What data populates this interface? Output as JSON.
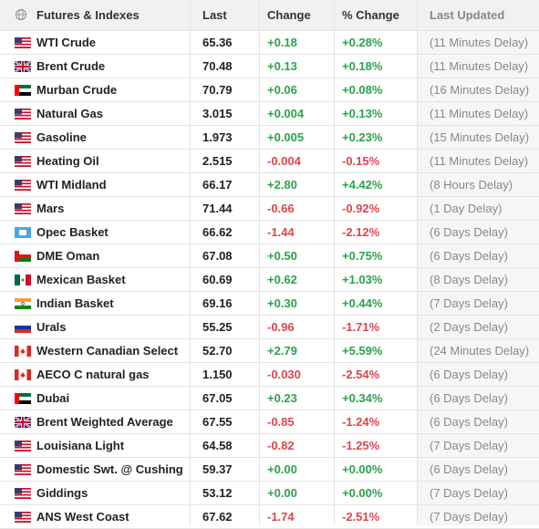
{
  "table": {
    "header": [
      "Futures & Indexes",
      "Last",
      "Change",
      "% Change",
      "Last Updated"
    ],
    "rows": [
      [
        "WTI Crude",
        "65.36",
        "+0.18",
        "+0.28%",
        "(11 Minutes Delay)"
      ],
      [
        "Brent Crude",
        "70.48",
        "+0.13",
        "+0.18%",
        "(11 Minutes Delay)"
      ],
      [
        "Murban Crude",
        "70.79",
        "+0.06",
        "+0.08%",
        "(16 Minutes Delay)"
      ],
      [
        "Natural Gas",
        "3.015",
        "+0.004",
        "+0.13%",
        "(11 Minutes Delay)"
      ],
      [
        "Gasoline",
        "1.973",
        "+0.005",
        "+0.23%",
        "(15 Minutes Delay)"
      ],
      [
        "Heating Oil",
        "2.515",
        "-0.004",
        "-0.15%",
        "(11 Minutes Delay)"
      ],
      [
        "WTI Midland",
        "66.17",
        "+2.80",
        "+4.42%",
        "(8 Hours Delay)"
      ],
      [
        "Mars",
        "71.44",
        "-0.66",
        "-0.92%",
        "(1 Day Delay)"
      ],
      [
        "Opec Basket",
        "66.62",
        "-1.44",
        "-2.12%",
        "(6 Days Delay)"
      ],
      [
        "DME Oman",
        "67.08",
        "+0.50",
        "+0.75%",
        "(6 Days Delay)"
      ],
      [
        "Mexican Basket",
        "60.69",
        "+0.62",
        "+1.03%",
        "(8 Days Delay)"
      ],
      [
        "Indian Basket",
        "69.16",
        "+0.30",
        "+0.44%",
        "(7 Days Delay)"
      ],
      [
        "Urals",
        "55.25",
        "-0.96",
        "-1.71%",
        "(2 Days Delay)"
      ],
      [
        "Western Canadian Select",
        "52.70",
        "+2.79",
        "+5.59%",
        "(24 Minutes Delay)"
      ],
      [
        "AECO C natural gas",
        "1.150",
        "-0.030",
        "-2.54%",
        "(6 Days Delay)"
      ],
      [
        "Dubai",
        "67.05",
        "+0.23",
        "+0.34%",
        "(6 Days Delay)"
      ],
      [
        "Brent Weighted Average",
        "67.55",
        "-0.85",
        "-1.24%",
        "(6 Days Delay)"
      ],
      [
        "Louisiana Light",
        "64.58",
        "-0.82",
        "-1.25%",
        "(7 Days Delay)"
      ],
      [
        "Domestic Swt. @ Cushing",
        "59.37",
        "+0.00",
        "+0.00%",
        "(6 Days Delay)"
      ],
      [
        "Giddings",
        "53.12",
        "+0.00",
        "+0.00%",
        "(7 Days Delay)"
      ],
      [
        "ANS West Coast",
        "67.62",
        "-1.74",
        "-2.51%",
        "(7 Days Delay)"
      ]
    ]
  }
}
